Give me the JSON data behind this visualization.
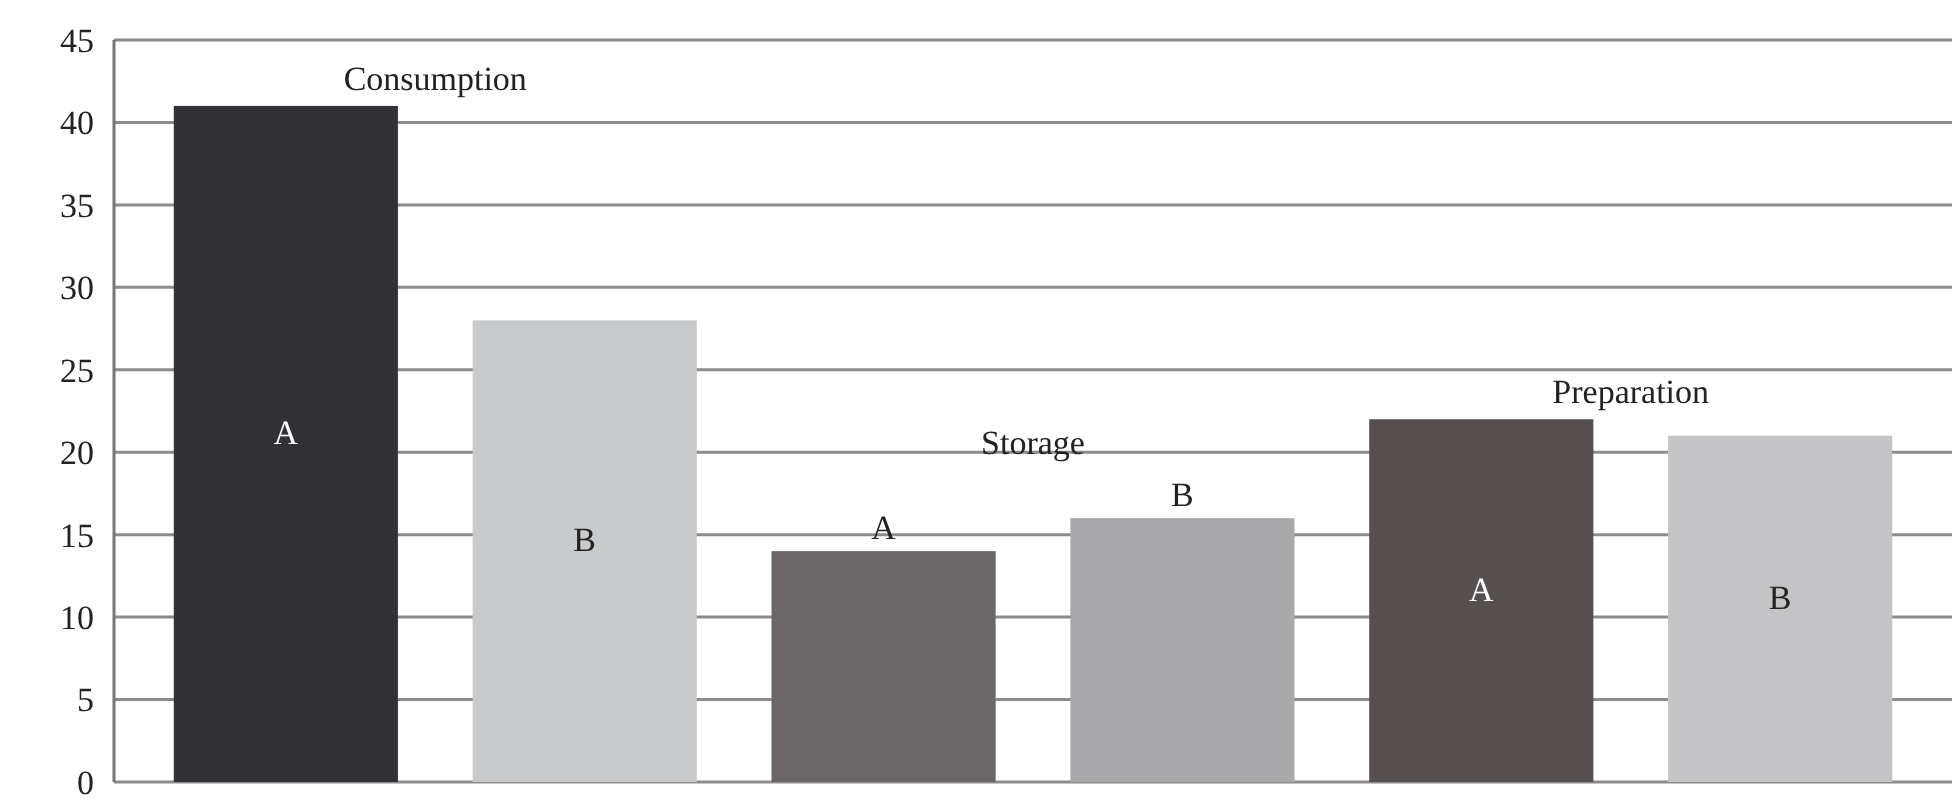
{
  "chart_data": {
    "type": "bar",
    "categories": [
      "A",
      "B",
      "A",
      "B",
      "A",
      "B"
    ],
    "values": [
      41,
      28,
      14,
      16,
      22,
      21
    ],
    "colors": [
      "#323135",
      "#c9cacc",
      "#6a6668",
      "#a9a9ab",
      "#55504f",
      "#c4c4c6"
    ],
    "ylim": [
      0,
      45
    ],
    "yticks": [
      0,
      5,
      10,
      15,
      20,
      25,
      30,
      35,
      40,
      45
    ],
    "grid": "y",
    "annotations": [
      "Consumption",
      "Storage",
      "Preparation"
    ]
  }
}
